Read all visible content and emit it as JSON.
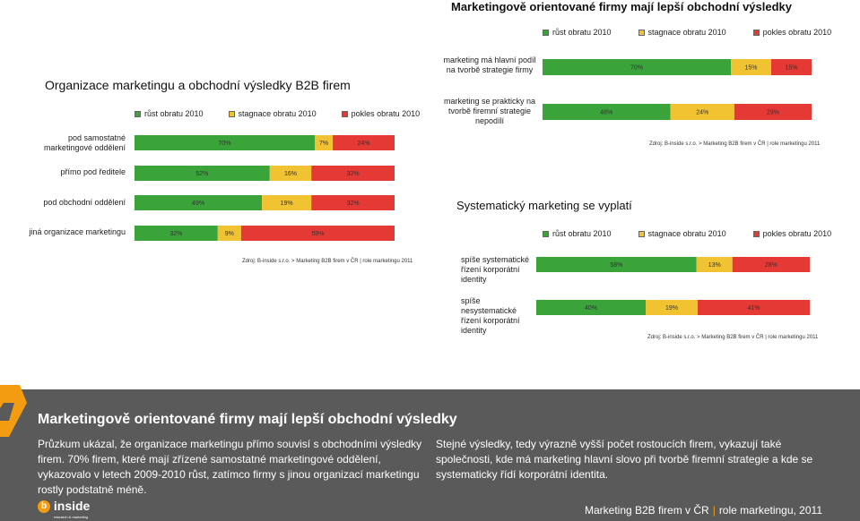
{
  "page_title": "Marketingově orientované firmy mají lepší obchodní výsledky",
  "colors": {
    "green": "#3aa33a",
    "yellow": "#f1c232",
    "red": "#e53935",
    "footer_bg": "#5a5a5a",
    "accent": "#f39c12"
  },
  "legend": {
    "growth": "růst obratu 2010",
    "stagnation": "stagnace obratu 2010",
    "decline": "pokles obratu 2010"
  },
  "chart_data": [
    {
      "id": "strategy",
      "type": "bar",
      "orientation": "horizontal-stacked-100",
      "categories": [
        "marketing má hlavní podíl na tvorbě strategie firmy",
        "marketing se prakticky na tvorbě firemní strategie nepodílí"
      ],
      "series": [
        {
          "name": "růst obratu 2010",
          "values": [
            70,
            48
          ],
          "labels": [
            "70%",
            "48%"
          ]
        },
        {
          "name": "stagnace obratu 2010",
          "values": [
            15,
            24
          ],
          "labels": [
            "15%",
            "24%"
          ]
        },
        {
          "name": "pokles obratu 2010",
          "values": [
            15,
            29
          ],
          "labels": [
            "15%",
            "29%"
          ]
        }
      ],
      "source": "Zdroj: B-inside s.r.o. > Marketing B2B firem v ČR | role marketingu 2011"
    },
    {
      "id": "organization",
      "type": "bar",
      "orientation": "horizontal-stacked-100",
      "title": "Organizace marketingu a obchodní výsledky B2B firem",
      "categories": [
        "pod samostatné marketingové oddělení",
        "přímo pod ředitele",
        "pod obchodní oddělení",
        "jiná organizace marketingu"
      ],
      "series": [
        {
          "name": "růst obratu 2010",
          "values": [
            70,
            52,
            49,
            32
          ],
          "labels": [
            "70%",
            "52%",
            "49%",
            "32%"
          ]
        },
        {
          "name": "stagnace obratu 2010",
          "values": [
            7,
            16,
            19,
            9
          ],
          "labels": [
            "7%",
            "16%",
            "19%",
            "9%"
          ]
        },
        {
          "name": "pokles obratu 2010",
          "values": [
            24,
            32,
            32,
            59
          ],
          "labels": [
            "24%",
            "32%",
            "32%",
            "59%"
          ]
        }
      ],
      "source": "Zdroj: B-inside s.r.o. > Marketing B2B firem v ČR | role marketingu 2011"
    },
    {
      "id": "systematic",
      "type": "bar",
      "orientation": "horizontal-stacked-100",
      "title": "Systematický marketing se vyplatí",
      "categories": [
        "spíše systematické řízení korporátní identity",
        "spíše nesystematické řízení korporátní identity"
      ],
      "series": [
        {
          "name": "růst obratu 2010",
          "values": [
            58,
            40
          ],
          "labels": [
            "58%",
            "40%"
          ]
        },
        {
          "name": "stagnace obratu 2010",
          "values": [
            13,
            19
          ],
          "labels": [
            "13%",
            "19%"
          ]
        },
        {
          "name": "pokles obratu 2010",
          "values": [
            28,
            41
          ],
          "labels": [
            "28%",
            "41%"
          ]
        }
      ],
      "source": "Zdroj: B-inside s.r.o. > Marketing B2B firem v ČR | role marketingu 2011"
    }
  ],
  "footer": {
    "title": "Marketingově orientované firmy mají lepší obchodní výsledky",
    "text_left": "Průzkum ukázal, že organizace marketingu přímo souvisí s obchodními výsledky firem. 70% firem, které mají zřízené samostatné marketingové oddělení, vykazovalo v letech 2009-2010 růst, zatímco firmy s jinou organizací marketingu rostly podstatně méně.",
    "text_right": "Stejné výsledky, tedy výrazně vyšší počet rostoucích firem, vykazují také společnosti, kde má marketing hlavní slovo při tvorbě firemní strategie a kde se systematicky řídí korporátní identita.",
    "brand": "inside",
    "brand_sub": "research & marketing",
    "crumb_a": "Marketing B2B firem v ČR",
    "crumb_b": "role marketingu, 2011"
  }
}
